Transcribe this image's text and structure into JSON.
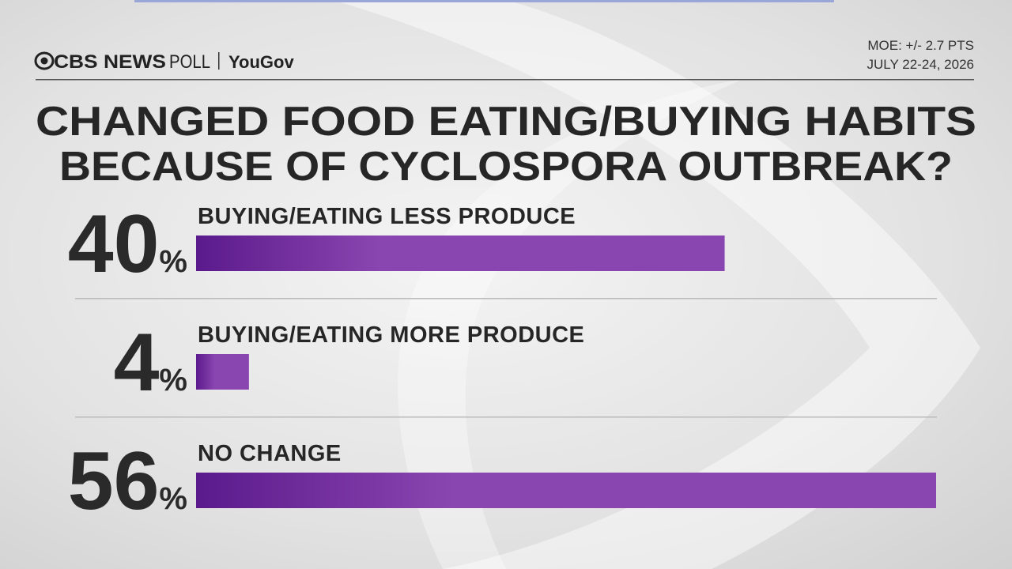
{
  "header": {
    "brand": "CBS NEWS",
    "brand_suffix": "POLL",
    "partner": "YouGov",
    "moe": "MOE: +/- 2.7 PTS",
    "dates": "JULY 22-24, 2026"
  },
  "chart_data": {
    "type": "bar",
    "orientation": "horizontal",
    "title": [
      "CHANGED FOOD EATING/BUYING HABITS",
      "BECAUSE OF CYCLOSPORA OUTBREAK?"
    ],
    "categories": [
      "BUYING/EATING LESS PRODUCE",
      "BUYING/EATING MORE PRODUCE",
      "NO CHANGE"
    ],
    "values": [
      40,
      4,
      56
    ],
    "value_labels": [
      "40%",
      "4%",
      "56%"
    ],
    "color": [
      "#5b1a8c",
      "#8a46b0"
    ]
  }
}
